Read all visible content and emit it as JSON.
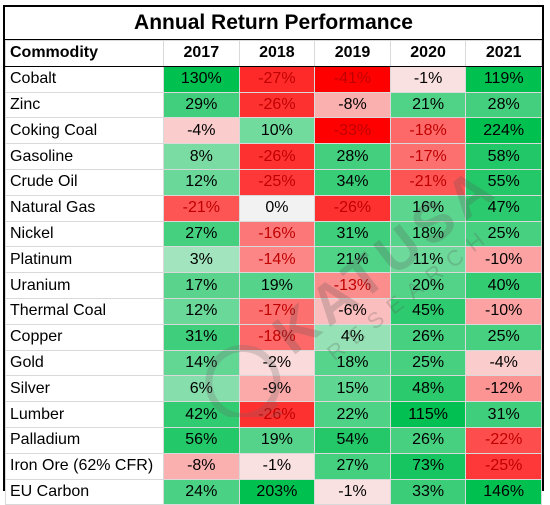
{
  "title": "Annual Return Performance",
  "columns": [
    "Commodity",
    "2017",
    "2018",
    "2019",
    "2020",
    "2021"
  ],
  "rows": [
    {
      "name": "Cobalt",
      "values": [
        "130%",
        "-27%",
        "-41%",
        "-1%",
        "119%"
      ]
    },
    {
      "name": "Zinc",
      "values": [
        "29%",
        "-26%",
        "-8%",
        "21%",
        "28%"
      ]
    },
    {
      "name": "Coking Coal",
      "values": [
        "-4%",
        "10%",
        "-33%",
        "-18%",
        "224%"
      ]
    },
    {
      "name": "Gasoline",
      "values": [
        "8%",
        "-26%",
        "28%",
        "-17%",
        "58%"
      ]
    },
    {
      "name": "Crude Oil",
      "values": [
        "12%",
        "-25%",
        "34%",
        "-21%",
        "55%"
      ]
    },
    {
      "name": "Natural Gas",
      "values": [
        "-21%",
        "0%",
        "-26%",
        "16%",
        "47%"
      ]
    },
    {
      "name": "Nickel",
      "values": [
        "27%",
        "-16%",
        "31%",
        "18%",
        "25%"
      ]
    },
    {
      "name": "Platinum",
      "values": [
        "3%",
        "-14%",
        "21%",
        "11%",
        "-10%"
      ]
    },
    {
      "name": "Uranium",
      "values": [
        "17%",
        "19%",
        "-13%",
        "20%",
        "40%"
      ]
    },
    {
      "name": "Thermal Coal",
      "values": [
        "12%",
        "-17%",
        "-6%",
        "45%",
        "-10%"
      ]
    },
    {
      "name": "Copper",
      "values": [
        "31%",
        "-18%",
        "4%",
        "26%",
        "25%"
      ]
    },
    {
      "name": "Gold",
      "values": [
        "14%",
        "-2%",
        "18%",
        "25%",
        "-4%"
      ]
    },
    {
      "name": "Silver",
      "values": [
        "6%",
        "-9%",
        "15%",
        "48%",
        "-12%"
      ]
    },
    {
      "name": "Lumber",
      "values": [
        "42%",
        "-26%",
        "22%",
        "115%",
        "31%"
      ]
    },
    {
      "name": "Palladium",
      "values": [
        "56%",
        "19%",
        "54%",
        "26%",
        "-22%"
      ]
    },
    {
      "name": "Iron Ore (62% CFR)",
      "values": [
        "-8%",
        "-1%",
        "27%",
        "73%",
        "-25%"
      ]
    },
    {
      "name": "EU Carbon",
      "values": [
        "24%",
        "203%",
        "-1%",
        "33%",
        "146%"
      ]
    }
  ],
  "watermark": {
    "brand": "KATUSA",
    "sub": "RESEARCH",
    "icon": "lightbulb-icon"
  },
  "colors": {
    "strong_green": "#00c050",
    "strong_red": "#ff0000",
    "neutral": "#fbeaea"
  }
}
